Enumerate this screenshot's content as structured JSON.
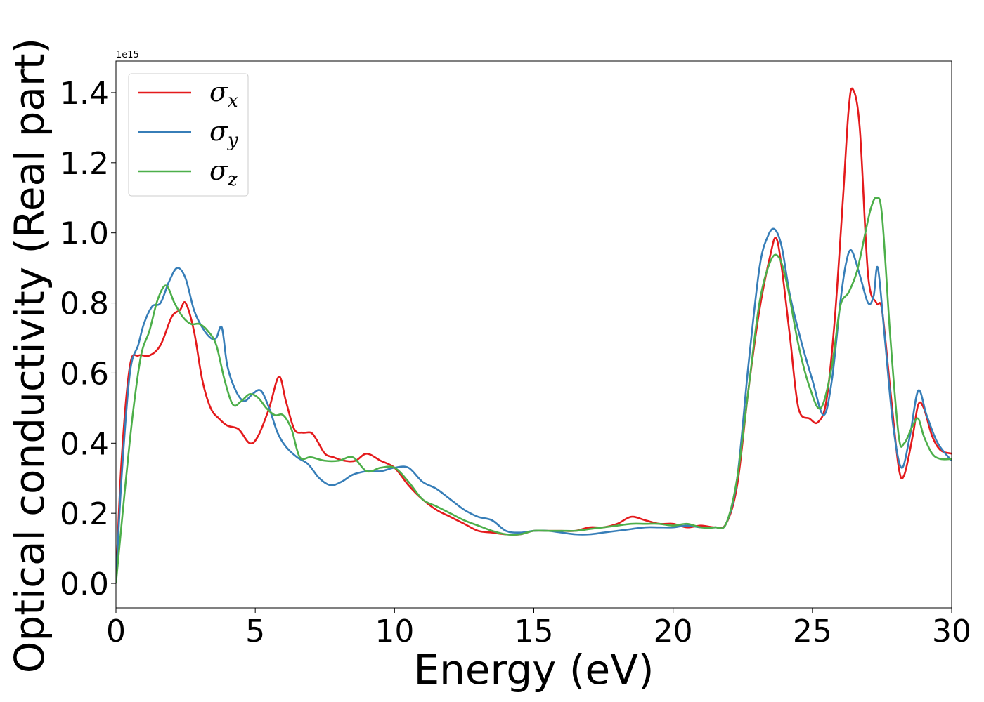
{
  "chart_data": {
    "type": "line",
    "title": "",
    "xlabel": "Energy (eV)",
    "ylabel": "Optical conductivity (Real part)",
    "y_offset_label": "1e15",
    "xlim": [
      0,
      30
    ],
    "ylim": [
      -0.07,
      1.49
    ],
    "x_ticks": [
      0,
      5,
      10,
      15,
      20,
      25,
      30
    ],
    "x_tick_labels": [
      "0",
      "5",
      "10",
      "15",
      "20",
      "25",
      "30"
    ],
    "y_ticks": [
      0.0,
      0.2,
      0.4,
      0.6,
      0.8,
      1.0,
      1.2,
      1.4
    ],
    "y_tick_labels": [
      "0.0",
      "0.2",
      "0.4",
      "0.6",
      "0.8",
      "1.0",
      "1.2",
      "1.4"
    ],
    "grid": false,
    "legend_position": "top-left",
    "series": [
      {
        "name": "σx",
        "legend_symbol": "σ",
        "legend_subscript": "x",
        "color": "#e41a1c",
        "x": [
          0,
          0.2,
          0.5,
          0.8,
          1.2,
          1.6,
          2.0,
          2.3,
          2.5,
          2.8,
          3.1,
          3.4,
          3.7,
          4.0,
          4.4,
          4.8,
          5.1,
          5.5,
          5.85,
          6.1,
          6.4,
          6.7,
          7.0,
          7.2,
          7.5,
          7.8,
          8.2,
          8.6,
          9.0,
          9.5,
          10.0,
          10.5,
          11.0,
          11.5,
          12.0,
          12.5,
          13.0,
          13.5,
          14.0,
          14.5,
          15.0,
          15.5,
          16.0,
          16.5,
          17.0,
          17.5,
          18.0,
          18.5,
          19.0,
          19.5,
          20.0,
          20.5,
          21.0,
          21.5,
          21.9,
          22.3,
          22.7,
          23.1,
          23.5,
          23.7,
          23.9,
          24.2,
          24.5,
          24.9,
          25.2,
          25.5,
          25.8,
          26.1,
          26.3,
          26.45,
          26.7,
          27.0,
          27.3,
          27.5,
          27.8,
          28.1,
          28.3,
          28.6,
          28.8,
          29.0,
          29.3,
          29.6,
          30.0
        ],
        "y": [
          0.0,
          0.35,
          0.62,
          0.65,
          0.65,
          0.68,
          0.76,
          0.78,
          0.8,
          0.72,
          0.58,
          0.5,
          0.47,
          0.45,
          0.44,
          0.4,
          0.42,
          0.5,
          0.59,
          0.52,
          0.44,
          0.43,
          0.43,
          0.41,
          0.37,
          0.36,
          0.35,
          0.35,
          0.37,
          0.35,
          0.33,
          0.28,
          0.24,
          0.21,
          0.19,
          0.17,
          0.15,
          0.145,
          0.14,
          0.14,
          0.15,
          0.15,
          0.15,
          0.15,
          0.16,
          0.16,
          0.17,
          0.19,
          0.18,
          0.17,
          0.17,
          0.16,
          0.165,
          0.16,
          0.17,
          0.28,
          0.55,
          0.78,
          0.94,
          0.985,
          0.9,
          0.7,
          0.5,
          0.47,
          0.46,
          0.52,
          0.75,
          1.1,
          1.35,
          1.41,
          1.3,
          0.88,
          0.8,
          0.78,
          0.55,
          0.33,
          0.31,
          0.42,
          0.51,
          0.5,
          0.42,
          0.38,
          0.37
        ]
      },
      {
        "name": "σy",
        "legend_symbol": "σ",
        "legend_subscript": "y",
        "color": "#377eb8",
        "x": [
          0,
          0.2,
          0.5,
          0.8,
          1.0,
          1.3,
          1.6,
          1.9,
          2.2,
          2.5,
          2.8,
          3.1,
          3.4,
          3.6,
          3.8,
          4.0,
          4.3,
          4.6,
          4.9,
          5.2,
          5.5,
          5.8,
          6.1,
          6.5,
          6.9,
          7.3,
          7.7,
          8.1,
          8.5,
          9.0,
          9.5,
          10.0,
          10.5,
          11.0,
          11.5,
          12.0,
          12.5,
          13.0,
          13.5,
          14.0,
          14.5,
          15.0,
          15.5,
          16.0,
          16.5,
          17.0,
          17.5,
          18.0,
          18.5,
          19.0,
          19.5,
          20.0,
          20.5,
          21.0,
          21.5,
          21.9,
          22.3,
          22.7,
          23.1,
          23.4,
          23.65,
          23.9,
          24.2,
          24.6,
          25.0,
          25.4,
          25.7,
          26.0,
          26.2,
          26.4,
          26.7,
          27.0,
          27.2,
          27.35,
          27.6,
          27.9,
          28.2,
          28.5,
          28.8,
          29.1,
          29.5,
          30.0
        ],
        "y": [
          0.0,
          0.3,
          0.6,
          0.68,
          0.74,
          0.79,
          0.8,
          0.86,
          0.9,
          0.87,
          0.78,
          0.73,
          0.7,
          0.7,
          0.73,
          0.62,
          0.55,
          0.52,
          0.54,
          0.55,
          0.5,
          0.43,
          0.39,
          0.36,
          0.34,
          0.3,
          0.28,
          0.29,
          0.31,
          0.32,
          0.32,
          0.33,
          0.33,
          0.29,
          0.27,
          0.24,
          0.21,
          0.19,
          0.18,
          0.15,
          0.145,
          0.15,
          0.15,
          0.145,
          0.14,
          0.14,
          0.145,
          0.15,
          0.155,
          0.16,
          0.16,
          0.16,
          0.165,
          0.16,
          0.16,
          0.17,
          0.3,
          0.62,
          0.9,
          0.99,
          1.01,
          0.96,
          0.82,
          0.69,
          0.58,
          0.48,
          0.58,
          0.8,
          0.91,
          0.95,
          0.88,
          0.8,
          0.82,
          0.9,
          0.7,
          0.45,
          0.33,
          0.42,
          0.55,
          0.48,
          0.4,
          0.35
        ]
      },
      {
        "name": "σz",
        "legend_symbol": "σ",
        "legend_subscript": "z",
        "color": "#4daf4a",
        "x": [
          0,
          0.3,
          0.6,
          0.9,
          1.2,
          1.5,
          1.8,
          2.1,
          2.4,
          2.7,
          3.0,
          3.3,
          3.6,
          3.9,
          4.2,
          4.5,
          4.8,
          5.1,
          5.4,
          5.7,
          6.0,
          6.3,
          6.6,
          7.0,
          7.5,
          8.0,
          8.5,
          9.0,
          9.5,
          10.0,
          10.5,
          11.0,
          11.5,
          12.0,
          12.5,
          13.0,
          13.5,
          14.0,
          14.5,
          15.0,
          15.5,
          16.0,
          16.5,
          17.0,
          17.5,
          18.0,
          18.5,
          19.0,
          19.5,
          20.0,
          20.5,
          21.0,
          21.5,
          21.9,
          22.3,
          22.7,
          23.1,
          23.5,
          23.8,
          24.1,
          24.5,
          24.9,
          25.3,
          25.7,
          26.0,
          26.3,
          26.6,
          26.9,
          27.1,
          27.3,
          27.5,
          27.8,
          28.1,
          28.3,
          28.6,
          28.8,
          29.0,
          29.3,
          29.6,
          30.0
        ],
        "y": [
          0.0,
          0.25,
          0.48,
          0.65,
          0.72,
          0.81,
          0.85,
          0.8,
          0.76,
          0.74,
          0.74,
          0.72,
          0.68,
          0.58,
          0.51,
          0.52,
          0.54,
          0.53,
          0.5,
          0.48,
          0.48,
          0.44,
          0.36,
          0.36,
          0.35,
          0.35,
          0.36,
          0.32,
          0.33,
          0.33,
          0.29,
          0.24,
          0.22,
          0.2,
          0.18,
          0.165,
          0.15,
          0.14,
          0.14,
          0.15,
          0.15,
          0.15,
          0.15,
          0.155,
          0.16,
          0.165,
          0.17,
          0.17,
          0.17,
          0.165,
          0.17,
          0.16,
          0.16,
          0.17,
          0.3,
          0.55,
          0.8,
          0.92,
          0.93,
          0.85,
          0.68,
          0.56,
          0.5,
          0.62,
          0.79,
          0.83,
          0.89,
          1.0,
          1.07,
          1.1,
          1.05,
          0.7,
          0.42,
          0.4,
          0.45,
          0.47,
          0.42,
          0.37,
          0.355,
          0.355
        ]
      }
    ]
  }
}
